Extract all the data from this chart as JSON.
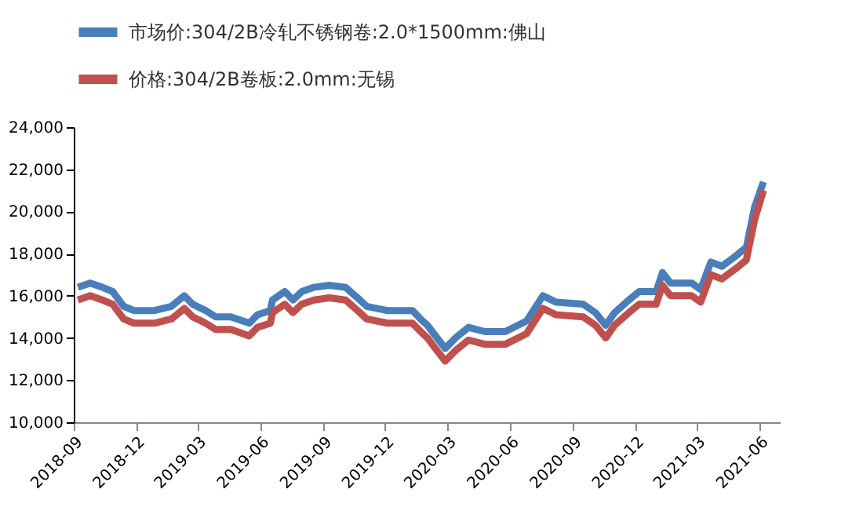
{
  "chart_data": {
    "type": "line",
    "x": [
      "2018-09-07",
      "2018-09-25",
      "2018-10-13",
      "2018-10-28",
      "2018-11-13",
      "2018-11-28",
      "2018-12-28",
      "2019-01-22",
      "2019-02-10",
      "2019-02-22",
      "2019-03-13",
      "2019-03-28",
      "2019-04-19",
      "2019-05-16",
      "2019-05-28",
      "2019-06-16",
      "2019-06-19",
      "2019-07-07",
      "2019-07-19",
      "2019-08-01",
      "2019-08-19",
      "2019-09-10",
      "2019-10-04",
      "2019-10-25",
      "2019-11-04",
      "2019-12-04",
      "2020-01-10",
      "2020-01-25",
      "2020-02-01",
      "2020-02-15",
      "2020-02-27",
      "2020-03-13",
      "2020-04-01",
      "2020-04-25",
      "2020-05-25",
      "2020-06-25",
      "2020-07-19",
      "2020-08-07",
      "2020-09-16",
      "2020-10-04",
      "2020-10-19",
      "2020-11-01",
      "2020-11-22",
      "2020-12-07",
      "2021-01-01",
      "2021-01-10",
      "2021-01-22",
      "2021-02-22",
      "2021-03-07",
      "2021-03-22",
      "2021-04-07",
      "2021-04-28",
      "2021-05-13",
      "2021-05-25",
      "2021-06-07"
    ],
    "series": [
      {
        "name": "市场价:304/2B冷轧不锈钢卷:2.0*1500mm:佛山",
        "color": "#4a7ebb",
        "values": [
          16400,
          16600,
          16400,
          16200,
          15500,
          15300,
          15300,
          15500,
          16000,
          15600,
          15300,
          15000,
          15000,
          14700,
          15100,
          15300,
          15800,
          16200,
          15800,
          16200,
          16400,
          16500,
          16400,
          15800,
          15500,
          15300,
          15300,
          14800,
          14600,
          14000,
          13500,
          14000,
          14500,
          14300,
          14300,
          14800,
          16000,
          15700,
          15600,
          15200,
          14600,
          15200,
          15800,
          16200,
          16200,
          17100,
          16600,
          16600,
          16300,
          17600,
          17400,
          17900,
          18300,
          20200,
          21400
        ]
      },
      {
        "name": "价格:304/2B卷板:2.0mm:无锡",
        "color": "#c0504d",
        "values": [
          15800,
          16000,
          15800,
          15600,
          14900,
          14700,
          14700,
          14900,
          15400,
          15000,
          14700,
          14400,
          14400,
          14100,
          14500,
          14700,
          15200,
          15600,
          15200,
          15600,
          15800,
          15900,
          15800,
          15200,
          14900,
          14700,
          14700,
          14200,
          14000,
          13400,
          12900,
          13400,
          13900,
          13700,
          13700,
          14200,
          15400,
          15100,
          15000,
          14600,
          14000,
          14600,
          15200,
          15600,
          15600,
          16500,
          16000,
          16000,
          15700,
          17000,
          16800,
          17300,
          17700,
          19600,
          21000
        ]
      }
    ],
    "xlim": [
      "2018-09-01",
      "2021-07-01"
    ],
    "xticks": [
      "2018-09",
      "2018-12",
      "2019-03",
      "2019-06",
      "2019-09",
      "2019-12",
      "2020-03",
      "2020-06",
      "2020-09",
      "2020-12",
      "2021-03",
      "2021-06"
    ],
    "ylim": [
      10000,
      24000
    ],
    "yticks": [
      {
        "value": 10000,
        "label": "10,000"
      },
      {
        "value": 12000,
        "label": "12,000"
      },
      {
        "value": 14000,
        "label": "14,000"
      },
      {
        "value": 16000,
        "label": "16,000"
      },
      {
        "value": 18000,
        "label": "18,000"
      },
      {
        "value": 20000,
        "label": "20,000"
      },
      {
        "value": 22000,
        "label": "22,000"
      },
      {
        "value": 24000,
        "label": "24,000"
      }
    ],
    "grid": false,
    "legend": "top",
    "marker": "none",
    "line_style": "solid"
  }
}
